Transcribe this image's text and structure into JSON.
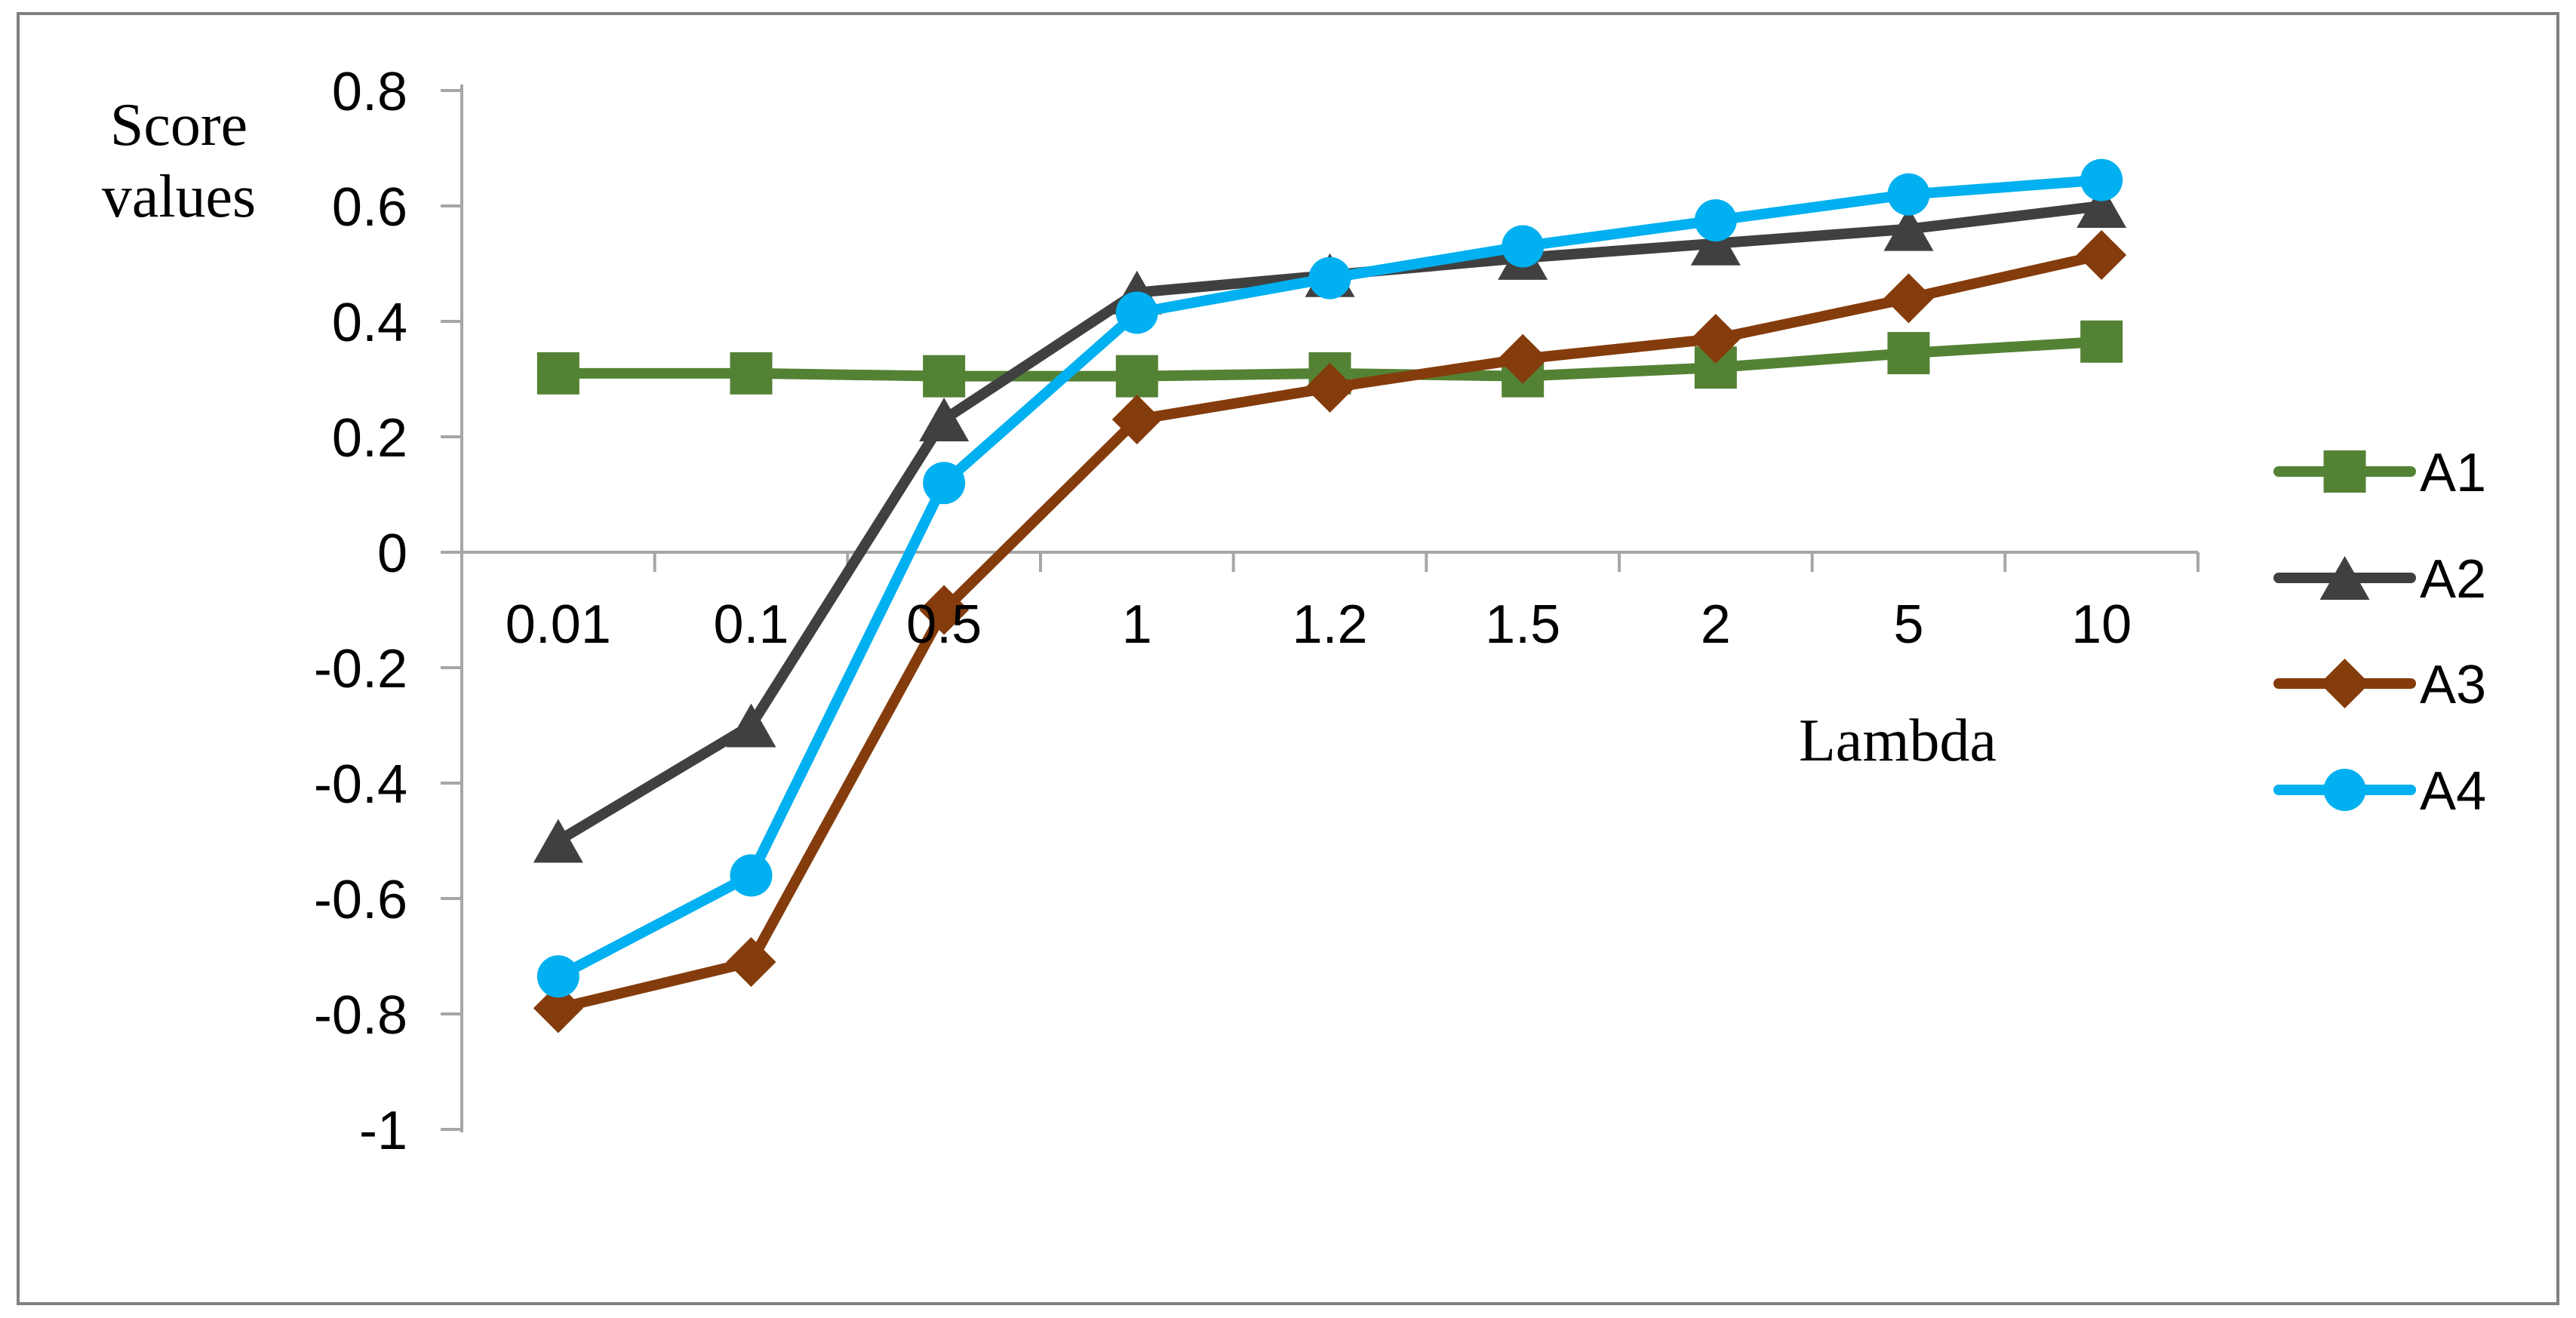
{
  "figure": {
    "background": "#ffffff",
    "border_color": "#808080"
  },
  "labels": {
    "ylabel_line1": "Score",
    "ylabel_line2": "values",
    "xlabel": "Lambda"
  },
  "colors": {
    "axis": "#A6A6A6",
    "border": "#808080",
    "text": "#000000",
    "series_a1": "#548235",
    "series_a2": "#404040",
    "series_a3": "#843C0C",
    "series_a4": "#00B0F0"
  },
  "legend": {
    "position": "right",
    "entries": [
      {
        "label": "A1",
        "marker": "square",
        "color": "#548235"
      },
      {
        "label": "A2",
        "marker": "triangle",
        "color": "#404040"
      },
      {
        "label": "A3",
        "marker": "diamond",
        "color": "#843C0C"
      },
      {
        "label": "A4",
        "marker": "circle",
        "color": "#00B0F0"
      }
    ]
  },
  "chart_data": {
    "type": "line",
    "title": "",
    "xlabel": "Lambda",
    "ylabel": "Score values",
    "grid": false,
    "legend_position": "right",
    "categories": [
      "0.01",
      "0.1",
      "0.5",
      "1",
      "1.2",
      "1.5",
      "2",
      "5",
      "10"
    ],
    "series": [
      {
        "name": "A1",
        "marker": "square",
        "color": "#548235",
        "values": [
          0.31,
          0.31,
          0.305,
          0.305,
          0.31,
          0.305,
          0.32,
          0.345,
          0.365
        ]
      },
      {
        "name": "A2",
        "marker": "triangle",
        "color": "#404040",
        "values": [
          -0.5,
          -0.3,
          0.23,
          0.45,
          0.48,
          0.51,
          0.535,
          0.56,
          0.6
        ]
      },
      {
        "name": "A3",
        "marker": "diamond",
        "color": "#843C0C",
        "values": [
          -0.79,
          -0.71,
          -0.1,
          0.23,
          0.285,
          0.335,
          0.37,
          0.44,
          0.515
        ]
      },
      {
        "name": "A4",
        "marker": "circle",
        "color": "#00B0F0",
        "values": [
          -0.735,
          -0.56,
          0.12,
          0.415,
          0.475,
          0.53,
          0.575,
          0.62,
          0.645
        ]
      }
    ],
    "y_axis": {
      "min": -1,
      "max": 0.8,
      "step": 0.2,
      "tick_values": [
        0.8,
        0.6,
        0.4,
        0.2,
        0,
        -0.2,
        -0.4,
        -0.6,
        -0.8,
        -1
      ],
      "tick_labels": [
        "0.8",
        "0.6",
        "0.4",
        "0.2",
        "0",
        "-0.2",
        "-0.4",
        "-0.6",
        "-0.8",
        "-1"
      ]
    },
    "ylim": [
      -1,
      0.8
    ]
  }
}
